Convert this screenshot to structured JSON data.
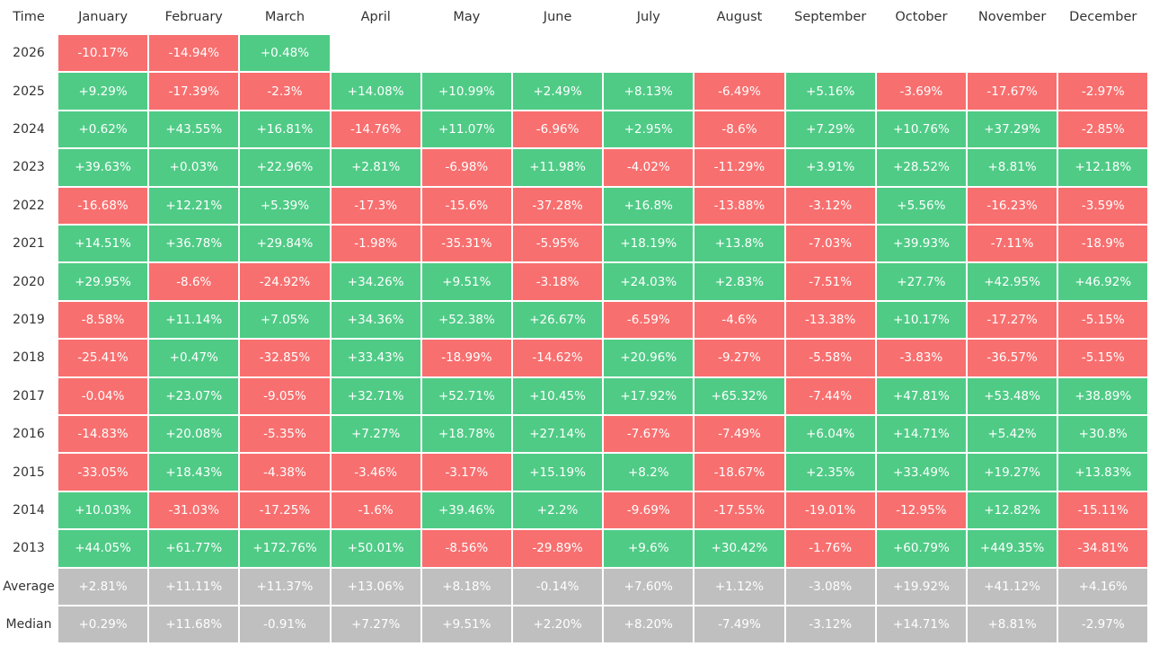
{
  "table": {
    "header": [
      "Time",
      "January",
      "February",
      "March",
      "April",
      "May",
      "June",
      "July",
      "August",
      "September",
      "October",
      "November",
      "December"
    ],
    "rows": [
      [
        "2026",
        "-10.17%",
        "-14.94%",
        "+0.48%"
      ],
      [
        "2025",
        "+9.29%",
        "-17.39%",
        "-2.3%",
        "+14.08%",
        "+10.99%",
        "+2.49%",
        "+8.13%",
        "-6.49%",
        "+5.16%",
        "-3.69%",
        "-17.67%",
        "-2.97%"
      ],
      [
        "2024",
        "+0.62%",
        "+43.55%",
        "+16.81%",
        "-14.76%",
        "+11.07%",
        "-6.96%",
        "+2.95%",
        "-8.6%",
        "+7.29%",
        "+10.76%",
        "+37.29%",
        "-2.85%"
      ],
      [
        "2023",
        "+39.63%",
        "+0.03%",
        "+22.96%",
        "+2.81%",
        "-6.98%",
        "+11.98%",
        "-4.02%",
        "-11.29%",
        "+3.91%",
        "+28.52%",
        "+8.81%",
        "+12.18%"
      ],
      [
        "2022",
        "-16.68%",
        "+12.21%",
        "+5.39%",
        "-17.3%",
        "-15.6%",
        "-37.28%",
        "+16.8%",
        "-13.88%",
        "-3.12%",
        "+5.56%",
        "-16.23%",
        "-3.59%"
      ],
      [
        "2021",
        "+14.51%",
        "+36.78%",
        "+29.84%",
        "-1.98%",
        "-35.31%",
        "-5.95%",
        "+18.19%",
        "+13.8%",
        "-7.03%",
        "+39.93%",
        "-7.11%",
        "-18.9%"
      ],
      [
        "2020",
        "+29.95%",
        "-8.6%",
        "-24.92%",
        "+34.26%",
        "+9.51%",
        "-3.18%",
        "+24.03%",
        "+2.83%",
        "-7.51%",
        "+27.7%",
        "+42.95%",
        "+46.92%"
      ],
      [
        "2019",
        "-8.58%",
        "+11.14%",
        "+7.05%",
        "+34.36%",
        "+52.38%",
        "+26.67%",
        "-6.59%",
        "-4.6%",
        "-13.38%",
        "+10.17%",
        "-17.27%",
        "-5.15%"
      ],
      [
        "2018",
        "-25.41%",
        "+0.47%",
        "-32.85%",
        "+33.43%",
        "-18.99%",
        "-14.62%",
        "+20.96%",
        "-9.27%",
        "-5.58%",
        "-3.83%",
        "-36.57%",
        "-5.15%"
      ],
      [
        "2017",
        "-0.04%",
        "+23.07%",
        "-9.05%",
        "+32.71%",
        "+52.71%",
        "+10.45%",
        "+17.92%",
        "+65.32%",
        "-7.44%",
        "+47.81%",
        "+53.48%",
        "+38.89%"
      ],
      [
        "2016",
        "-14.83%",
        "+20.08%",
        "-5.35%",
        "+7.27%",
        "+18.78%",
        "+27.14%",
        "-7.67%",
        "-7.49%",
        "+6.04%",
        "+14.71%",
        "+5.42%",
        "+30.8%"
      ],
      [
        "2015",
        "-33.05%",
        "+18.43%",
        "-4.38%",
        "-3.46%",
        "-3.17%",
        "+15.19%",
        "+8.2%",
        "-18.67%",
        "+2.35%",
        "+33.49%",
        "+19.27%",
        "+13.83%"
      ],
      [
        "2014",
        "+10.03%",
        "-31.03%",
        "-17.25%",
        "-1.6%",
        "+39.46%",
        "+2.2%",
        "-9.69%",
        "-17.55%",
        "-19.01%",
        "-12.95%",
        "+12.82%",
        "-15.11%"
      ],
      [
        "2013",
        "+44.05%",
        "+61.77%",
        "+172.76%",
        "+50.01%",
        "-8.56%",
        "-29.89%",
        "+9.6%",
        "+30.42%",
        "-1.76%",
        "+60.79%",
        "+449.35%",
        "-34.81%"
      ]
    ],
    "summary": [
      [
        "Average",
        "+2.81%",
        "+11.11%",
        "+11.37%",
        "+13.06%",
        "+8.18%",
        "-0.14%",
        "+7.60%",
        "+1.12%",
        "-3.08%",
        "+19.92%",
        "+41.12%",
        "+4.16%"
      ],
      [
        "Median",
        "+0.29%",
        "+11.68%",
        "-0.91%",
        "+7.27%",
        "+9.51%",
        "+2.20%",
        "+8.20%",
        "-7.49%",
        "-3.12%",
        "+14.71%",
        "+8.81%",
        "-2.97%"
      ]
    ],
    "colors": {
      "positive": "#4fcb86",
      "negative": "#f86f6f",
      "summary": "#bfbfbf"
    }
  }
}
